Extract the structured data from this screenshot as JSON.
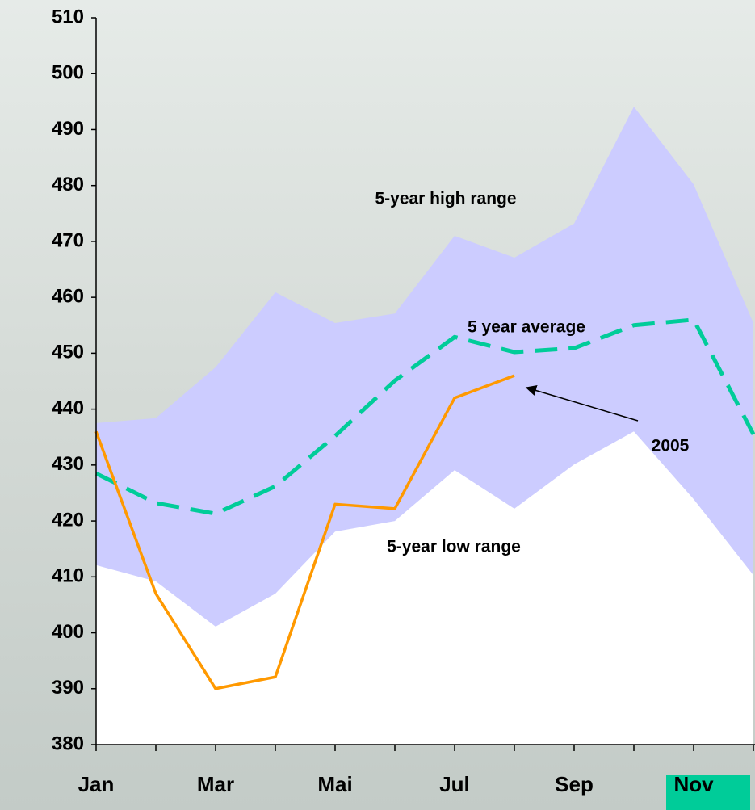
{
  "chart_data": {
    "type": "line",
    "categories": [
      "Jan",
      null,
      "Mar",
      null,
      "Mai",
      null,
      "Jul",
      null,
      "Sep",
      null,
      "Nov",
      null
    ],
    "series": [
      {
        "name": "5-year high range",
        "color": "#ccccff",
        "style": "area",
        "values": [
          437.5,
          438.4,
          447.5,
          460.9,
          455.4,
          457.1,
          471,
          467.1,
          473.2,
          494.1,
          480.2,
          455.4
        ]
      },
      {
        "name": "5-year low range",
        "color": "#ffffff",
        "style": "area",
        "values": [
          412.1,
          409.2,
          401.1,
          407,
          418.1,
          420,
          429.1,
          422.2,
          430.1,
          436,
          423.9,
          410.3
        ]
      },
      {
        "name": "5 year average",
        "color": "#00cc99",
        "style": "dashed",
        "values": [
          428.5,
          423.2,
          421.3,
          426.2,
          435.2,
          445.1,
          452.9,
          450.2,
          450.9,
          455,
          456,
          435.5
        ]
      },
      {
        "name": "2005",
        "color": "#ff9900",
        "style": "solid",
        "values": [
          436,
          407,
          390,
          392.1,
          423,
          422.2,
          442,
          446,
          null,
          null,
          null,
          null
        ]
      }
    ],
    "ylim": [
      380,
      510
    ],
    "yticks": [
      380,
      390,
      400,
      410,
      420,
      430,
      440,
      450,
      460,
      470,
      480,
      490,
      500,
      510
    ]
  }
}
